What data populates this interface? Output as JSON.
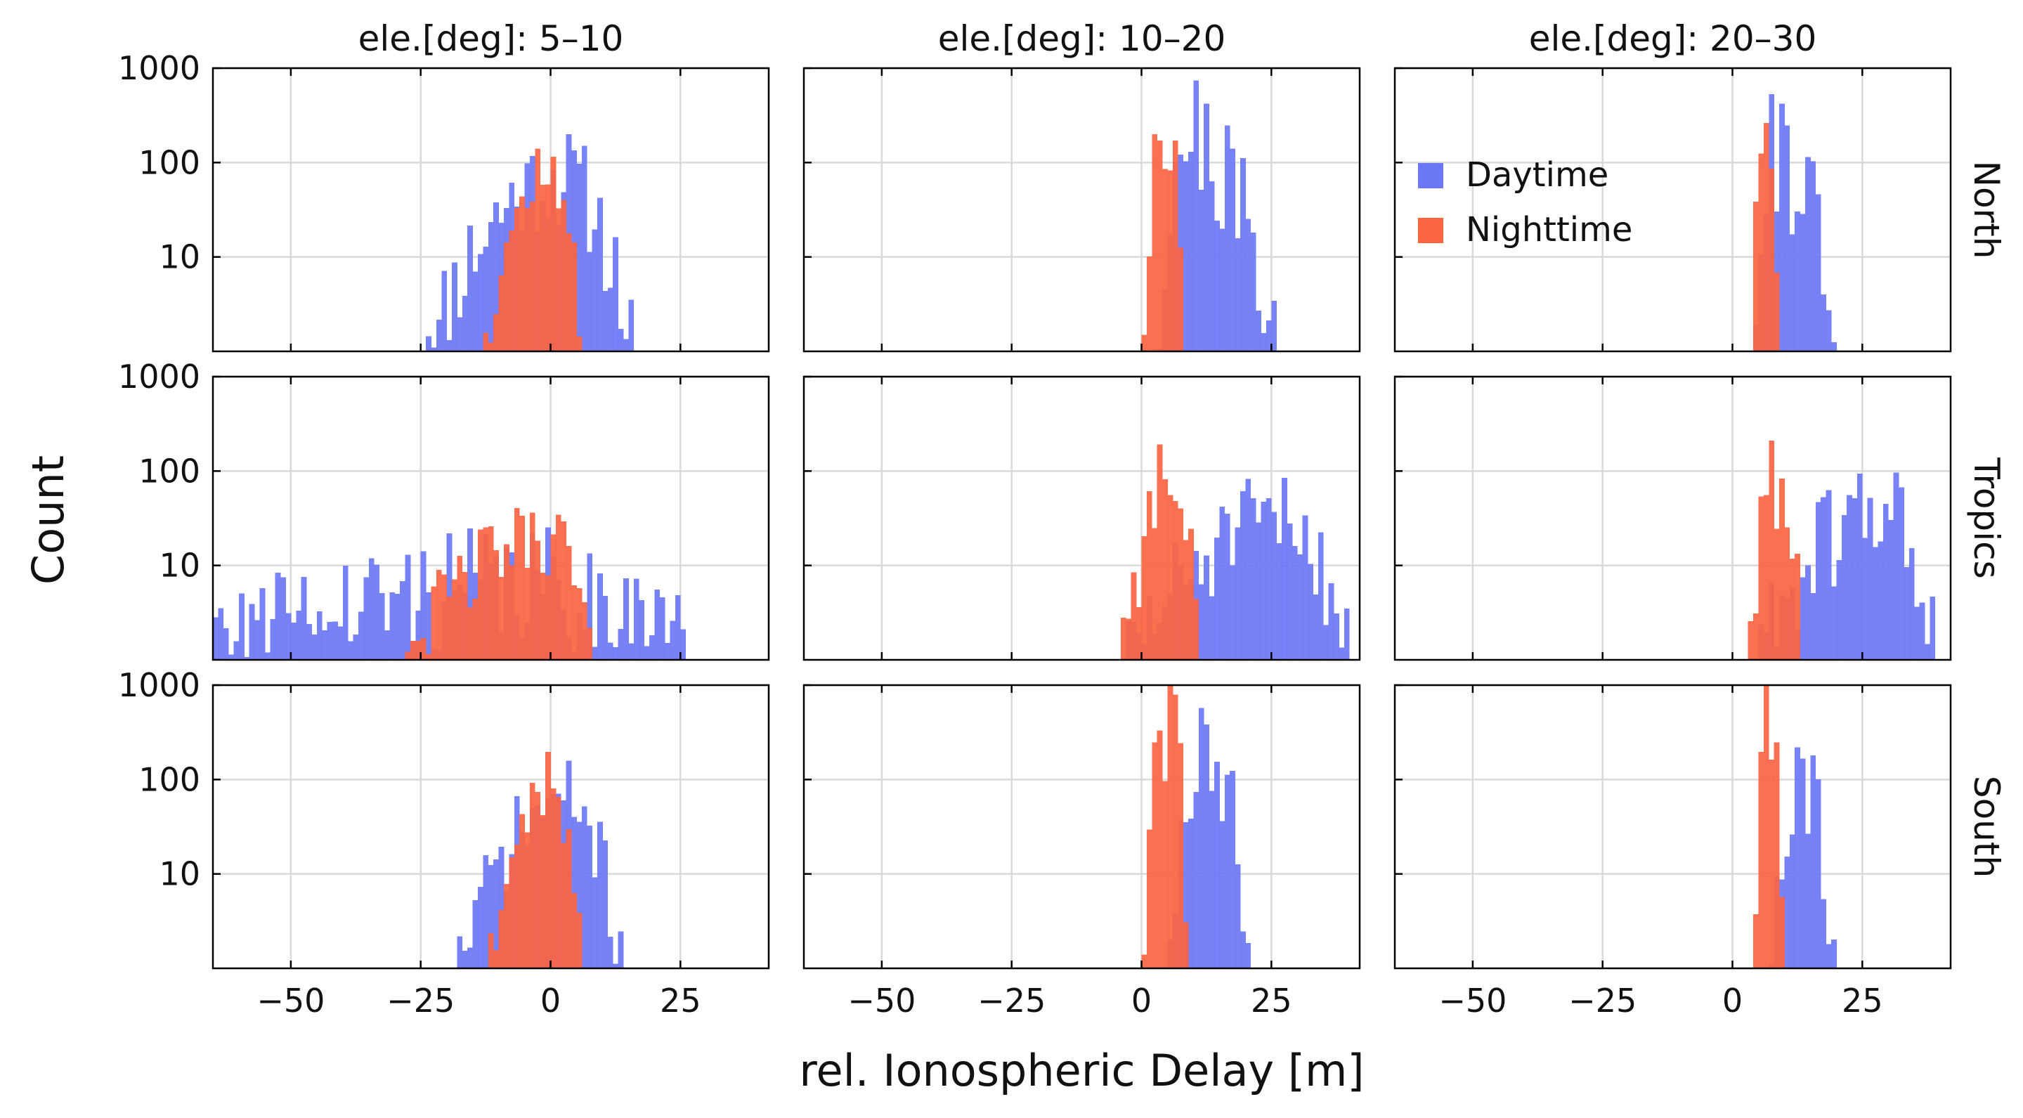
{
  "chart_data": {
    "type": "histogram-grid",
    "scale": "log",
    "xlabel": "rel. Ionospheric Delay [m]",
    "ylabel": "Count",
    "xlim": [
      -65,
      42
    ],
    "ylim": [
      1,
      1000
    ],
    "xticks": [
      -50,
      -25,
      0,
      25
    ],
    "yticks": [
      10,
      100,
      1000
    ],
    "ytick_labels": [
      "10",
      "100",
      "1000"
    ],
    "grid": true,
    "columns": [
      "ele.[deg]: 5–10",
      "ele.[deg]: 10–20",
      "ele.[deg]: 20–30"
    ],
    "rows": [
      "North",
      "Tropics",
      "South"
    ],
    "legend": {
      "position": "inside top-left of North / 20–30 panel",
      "entries": [
        {
          "name": "Daytime",
          "color": "#6B77F5"
        },
        {
          "name": "Nighttime",
          "color": "#FB6442"
        }
      ]
    },
    "bin_width": 1.0,
    "panels": [
      {
        "row": "North",
        "column": "ele.[deg]: 5–10",
        "series": [
          {
            "name": "Daytime",
            "color": "#6B77F5",
            "range": [
              -24,
              16
            ],
            "peak": 2,
            "peak_count": 70,
            "noise": 0.25,
            "seed": 11
          },
          {
            "name": "Nighttime",
            "color": "#FB6442",
            "range": [
              -13,
              6
            ],
            "peak": 0,
            "peak_count": 80,
            "noise": 0.15,
            "seed": 12
          }
        ]
      },
      {
        "row": "North",
        "column": "ele.[deg]: 10–20",
        "series": [
          {
            "name": "Daytime",
            "color": "#6B77F5",
            "range": [
              3,
              26
            ],
            "peak": 8,
            "peak_count": 200,
            "noise": 0.3,
            "seed": 21
          },
          {
            "name": "Nighttime",
            "color": "#FB6442",
            "range": [
              0,
              8
            ],
            "peak": 5,
            "peak_count": 300,
            "noise": 0.2,
            "seed": 22
          }
        ]
      },
      {
        "row": "North",
        "column": "ele.[deg]: 20–30",
        "series": [
          {
            "name": "Daytime",
            "color": "#6B77F5",
            "range": [
              4,
              20
            ],
            "peak": 7,
            "peak_count": 170,
            "noise": 0.3,
            "seed": 31
          },
          {
            "name": "Nighttime",
            "color": "#FB6442",
            "range": [
              4,
              9
            ],
            "peak": 5,
            "peak_count": 320,
            "noise": 0.2,
            "seed": 32
          }
        ]
      },
      {
        "row": "Tropics",
        "column": "ele.[deg]: 5–10",
        "series": [
          {
            "name": "Daytime",
            "color": "#6B77F5",
            "range": [
              -65,
              26
            ],
            "peak": -5,
            "peak_count": 6,
            "noise": 0.55,
            "seed": 41
          },
          {
            "name": "Nighttime",
            "color": "#FB6442",
            "range": [
              -28,
              8
            ],
            "peak": 0,
            "peak_count": 20,
            "noise": 0.25,
            "seed": 42
          }
        ]
      },
      {
        "row": "Tropics",
        "column": "ele.[deg]: 10–20",
        "series": [
          {
            "name": "Daytime",
            "color": "#6B77F5",
            "range": [
              -3,
              40
            ],
            "peak": 28,
            "peak_count": 28,
            "noise": 0.3,
            "seed": 51
          },
          {
            "name": "Nighttime",
            "color": "#FB6442",
            "range": [
              -4,
              11
            ],
            "peak": 6,
            "peak_count": 75,
            "noise": 0.25,
            "seed": 52
          }
        ]
      },
      {
        "row": "Tropics",
        "column": "ele.[deg]: 20–30",
        "series": [
          {
            "name": "Daytime",
            "color": "#6B77F5",
            "range": [
              5,
              39
            ],
            "peak": 30,
            "peak_count": 40,
            "noise": 0.3,
            "seed": 61
          },
          {
            "name": "Nighttime",
            "color": "#FB6442",
            "range": [
              3,
              13
            ],
            "peak": 10,
            "peak_count": 100,
            "noise": 0.25,
            "seed": 62
          }
        ]
      },
      {
        "row": "South",
        "column": "ele.[deg]: 5–10",
        "series": [
          {
            "name": "Daytime",
            "color": "#6B77F5",
            "range": [
              -18,
              14
            ],
            "peak": 3,
            "peak_count": 60,
            "noise": 0.2,
            "seed": 71
          },
          {
            "name": "Nighttime",
            "color": "#FB6442",
            "range": [
              -12,
              6
            ],
            "peak": 0,
            "peak_count": 95,
            "noise": 0.15,
            "seed": 72
          }
        ]
      },
      {
        "row": "South",
        "column": "ele.[deg]: 10–20",
        "series": [
          {
            "name": "Daytime",
            "color": "#6B77F5",
            "range": [
              5,
              21
            ],
            "peak": 12,
            "peak_count": 200,
            "noise": 0.25,
            "seed": 81
          },
          {
            "name": "Nighttime",
            "color": "#FB6442",
            "range": [
              0,
              9
            ],
            "peak": 6,
            "peak_count": 550,
            "noise": 0.2,
            "seed": 82
          }
        ]
      },
      {
        "row": "South",
        "column": "ele.[deg]: 20–30",
        "series": [
          {
            "name": "Daytime",
            "color": "#6B77F5",
            "range": [
              7,
              20
            ],
            "peak": 13,
            "peak_count": 140,
            "noise": 0.25,
            "seed": 91
          },
          {
            "name": "Nighttime",
            "color": "#FB6442",
            "range": [
              4,
              10
            ],
            "peak": 7,
            "peak_count": 700,
            "noise": 0.2,
            "seed": 92
          }
        ]
      }
    ]
  }
}
